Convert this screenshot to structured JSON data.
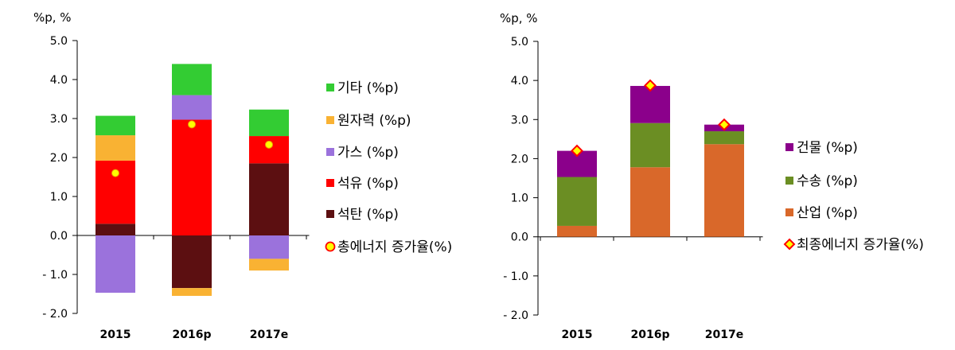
{
  "chart_data": [
    {
      "type": "bar",
      "stacked": true,
      "unit_label": "%p, %",
      "categories": [
        "2015",
        "2016p",
        "2017e"
      ],
      "ylim": [
        -2.0,
        5.0
      ],
      "yticks": [
        "5.0",
        "4.0",
        "3.0",
        "2.0",
        "1.0",
        "0.0",
        "- 1.0",
        "- 2.0"
      ],
      "ytick_values": [
        5,
        4,
        3,
        2,
        1,
        0,
        -1,
        -2
      ],
      "grid": false,
      "legend_position": "right",
      "series": [
        {
          "name": "석탄 (%p)",
          "color": "#5c0f11",
          "values": [
            0.3,
            -1.35,
            1.85
          ]
        },
        {
          "name": "석유 (%p)",
          "color": "#ff0000",
          "values": [
            1.62,
            2.97,
            0.7
          ]
        },
        {
          "name": "가스 (%p)",
          "color": "#9b72dc",
          "values": [
            -1.47,
            0.63,
            -0.6
          ]
        },
        {
          "name": "원자력 (%p)",
          "color": "#f9b233",
          "values": [
            0.65,
            -0.2,
            -0.3
          ]
        },
        {
          "name": "기타 (%p)",
          "color": "#33cc33",
          "values": [
            0.5,
            0.8,
            0.68
          ]
        }
      ],
      "line_series": {
        "name": "총에너지 증가율(%)",
        "marker": "circle",
        "color": "#ffff00",
        "edge": "#e8a000",
        "values": [
          1.6,
          2.85,
          2.33
        ]
      },
      "legend_order": [
        "기타 (%p)",
        "원자력 (%p)",
        "가스 (%p)",
        "석유 (%p)",
        "석탄 (%p)",
        "총에너지 증가율(%)"
      ]
    },
    {
      "type": "bar",
      "stacked": true,
      "unit_label": "%p, %",
      "categories": [
        "2015",
        "2016p",
        "2017e"
      ],
      "ylim": [
        -2.0,
        5.0
      ],
      "yticks": [
        "5.0",
        "4.0",
        "3.0",
        "2.0",
        "1.0",
        "0.0",
        "- 1.0",
        "- 2.0"
      ],
      "ytick_values": [
        5,
        4,
        3,
        2,
        1,
        0,
        -1,
        -2
      ],
      "grid": false,
      "legend_position": "right",
      "series": [
        {
          "name": "산업 (%p)",
          "color": "#d9682a",
          "values": [
            0.28,
            1.78,
            2.37
          ]
        },
        {
          "name": "수송 (%p)",
          "color": "#6b8e23",
          "values": [
            1.25,
            1.13,
            0.33
          ]
        },
        {
          "name": "건물 (%p)",
          "color": "#8b008b",
          "values": [
            0.67,
            0.95,
            0.17
          ]
        }
      ],
      "line_series": {
        "name": "최종에너지 증가율(%)",
        "marker": "diamond",
        "color": "#ffff00",
        "edge": "#ff0000",
        "values": [
          2.2,
          3.87,
          2.87
        ]
      },
      "legend_order": [
        "건물 (%p)",
        "수송 (%p)",
        "산업 (%p)",
        "최종에너지 증가율(%)"
      ]
    }
  ]
}
